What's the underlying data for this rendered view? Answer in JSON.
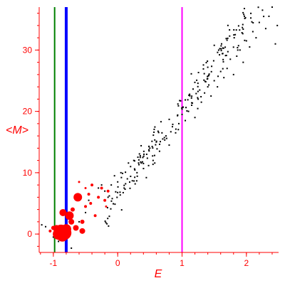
{
  "chart_data": {
    "type": "scatter",
    "title": "",
    "xlabel": "E",
    "ylabel": "<M>",
    "xlim": [
      -1.22,
      2.5
    ],
    "ylim": [
      -3,
      37
    ],
    "xticks": [
      {
        "value": -1,
        "label": "-1"
      },
      {
        "value": 0,
        "label": "0"
      },
      {
        "value": 1,
        "label": "1"
      },
      {
        "value": 2,
        "label": "2"
      }
    ],
    "yticks": [
      {
        "value": 0,
        "label": "0"
      },
      {
        "value": 10,
        "label": "10"
      },
      {
        "value": 20,
        "label": "20"
      },
      {
        "value": 30,
        "label": "30"
      }
    ],
    "grid": false,
    "legend": "none",
    "colors": {
      "axis": "#ff0000",
      "black_series": "#000000",
      "red_series": "#ff0000",
      "green_line": "#008000",
      "blue_line": "#0000ff",
      "magenta_line": "#ff00ff"
    },
    "vertical_lines": [
      {
        "x": -0.98,
        "color": "#008000",
        "width": 2
      },
      {
        "x": -0.8,
        "color": "#0000ff",
        "width": 4
      },
      {
        "x": 1.0,
        "color": "#ff00ff",
        "width": 2
      }
    ],
    "series": [
      {
        "color": "#000000",
        "marker": "small-dot",
        "trend": {
          "slope": 14.3,
          "intercept": 6.3,
          "x_from": -0.2,
          "x_to": 2.5,
          "scatter": 1.8
        },
        "points": [
          [
            -1.18,
            1.5
          ],
          [
            -1.12,
            1.2
          ],
          [
            -1.0,
            -0.5
          ],
          [
            -0.92,
            -1.2
          ],
          [
            -0.72,
            -2.3
          ],
          [
            -0.6,
            2.0
          ],
          [
            -0.5,
            3.5
          ],
          [
            -0.45,
            5.5
          ],
          [
            -0.3,
            7.5
          ],
          [
            -0.25,
            8.0
          ],
          [
            -0.2,
            7.0
          ],
          [
            -0.15,
            6.0
          ],
          [
            -0.1,
            8.0
          ],
          [
            -0.05,
            9.5
          ],
          [
            0.0,
            8.5
          ],
          [
            0.05,
            10.0
          ],
          [
            0.1,
            7.5
          ],
          [
            0.15,
            9.0
          ],
          [
            0.2,
            11.0
          ],
          [
            0.25,
            12.0
          ],
          [
            0.3,
            10.0
          ],
          [
            0.35,
            12.5
          ],
          [
            0.4,
            11.5
          ],
          [
            0.45,
            13.0
          ],
          [
            0.5,
            14.0
          ],
          [
            0.55,
            12.0
          ],
          [
            0.6,
            15.0
          ],
          [
            0.65,
            13.5
          ],
          [
            0.7,
            15.5
          ],
          [
            0.75,
            16.0
          ],
          [
            0.8,
            14.5
          ],
          [
            0.85,
            17.5
          ],
          [
            0.9,
            16.5
          ],
          [
            0.95,
            18.0
          ],
          [
            1.0,
            19.5
          ],
          [
            1.05,
            18.5
          ],
          [
            1.1,
            20.0
          ],
          [
            1.15,
            21.0
          ],
          [
            1.2,
            19.0
          ],
          [
            1.25,
            22.0
          ],
          [
            1.3,
            21.5
          ],
          [
            1.35,
            23.0
          ],
          [
            1.4,
            24.0
          ],
          [
            1.45,
            22.5
          ],
          [
            1.5,
            25.0
          ],
          [
            1.55,
            24.0
          ],
          [
            1.6,
            26.5
          ],
          [
            1.65,
            25.5
          ],
          [
            1.7,
            27.0
          ],
          [
            1.75,
            28.5
          ],
          [
            1.8,
            26.0
          ],
          [
            1.85,
            29.0
          ],
          [
            1.9,
            30.0
          ],
          [
            1.95,
            28.0
          ],
          [
            2.0,
            31.5
          ],
          [
            2.05,
            30.5
          ],
          [
            2.1,
            33.0
          ],
          [
            2.15,
            32.0
          ],
          [
            2.2,
            34.5
          ],
          [
            2.25,
            36.5
          ],
          [
            2.3,
            33.5
          ],
          [
            2.35,
            35.5
          ],
          [
            2.4,
            37.0
          ],
          [
            2.45,
            31.0
          ],
          [
            2.48,
            34.0
          ]
        ]
      },
      {
        "color": "#ff0000",
        "marker": "sized-dot",
        "points": [
          {
            "x": -0.83,
            "y": 0.2,
            "size": 10
          },
          {
            "x": -0.88,
            "y": 0.5,
            "size": 9
          },
          {
            "x": -0.92,
            "y": 0.0,
            "size": 8
          },
          {
            "x": -0.86,
            "y": -0.3,
            "size": 8
          },
          {
            "x": -0.8,
            "y": 0.8,
            "size": 7
          },
          {
            "x": -0.95,
            "y": 0.9,
            "size": 5
          },
          {
            "x": -1.0,
            "y": 1.0,
            "size": 3
          },
          {
            "x": -1.05,
            "y": 0.5,
            "size": 2
          },
          {
            "x": -0.85,
            "y": 3.5,
            "size": 5
          },
          {
            "x": -0.75,
            "y": 3.0,
            "size": 6
          },
          {
            "x": -0.72,
            "y": 2.0,
            "size": 4
          },
          {
            "x": -0.65,
            "y": 1.0,
            "size": 4
          },
          {
            "x": -0.55,
            "y": 0.5,
            "size": 4
          },
          {
            "x": -0.55,
            "y": 2.0,
            "size": 3
          },
          {
            "x": -0.62,
            "y": 6.0,
            "size": 6
          },
          {
            "x": -0.7,
            "y": 4.0,
            "size": 3
          },
          {
            "x": -0.5,
            "y": 4.5,
            "size": 2
          },
          {
            "x": -0.45,
            "y": 6.5,
            "size": 2
          },
          {
            "x": -0.4,
            "y": 8.0,
            "size": 2
          },
          {
            "x": -0.42,
            "y": 5.0,
            "size": 2
          },
          {
            "x": -0.35,
            "y": 3.0,
            "size": 2
          },
          {
            "x": -0.3,
            "y": 6.0,
            "size": 2
          },
          {
            "x": -0.25,
            "y": 7.5,
            "size": 2
          },
          {
            "x": -0.2,
            "y": 5.5,
            "size": 2
          },
          {
            "x": -0.18,
            "y": 4.5,
            "size": 1.5
          },
          {
            "x": -0.15,
            "y": 7.0,
            "size": 2
          },
          {
            "x": -0.6,
            "y": 8.5,
            "size": 1.5
          },
          {
            "x": -0.5,
            "y": 7.5,
            "size": 1.5
          }
        ]
      }
    ]
  }
}
